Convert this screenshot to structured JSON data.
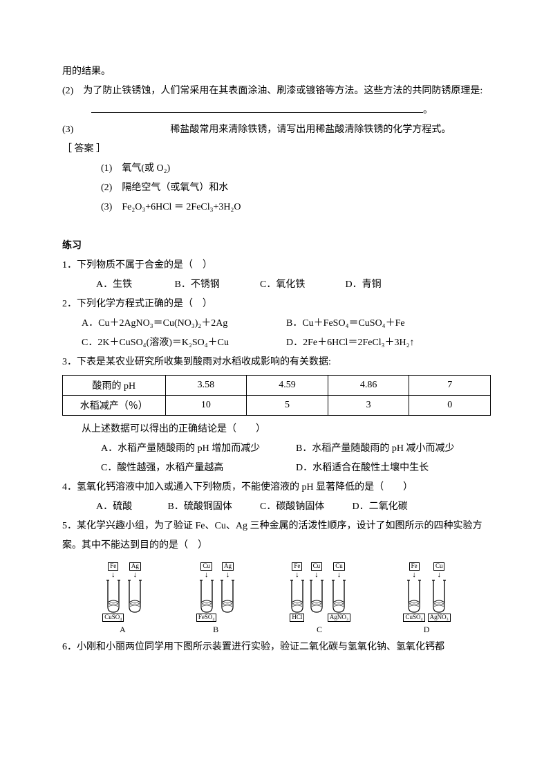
{
  "top": {
    "line1": "用的结果。",
    "q2": "(2)　为了防止铁锈蚀，人们常采用在其表面涂油、刷漆或镀铬等方法。这些方法的共同防锈原理是:",
    "blank_end": "。",
    "q3": "(3)　　　　　　　　　　稀盐酸常用来清除铁锈，请写出用稀盐酸清除铁锈的化学方程式。",
    "answer_label": "［ 答案 ］",
    "a1": "(1)　氧气(或 O₂)",
    "a2": "(2)　隔绝空气（或氧气）和水",
    "a3": "(3)　Fe₂O₃+6HCl ＝ 2FeCl₃+3H₂O"
  },
  "practice_title": "练习",
  "q1": {
    "stem": "1．下列物质不属于合金的是（　）",
    "optA": "A．生铁",
    "optB": "B．不锈钢",
    "optC": "C．氧化铁",
    "optD": "D．青铜"
  },
  "q2p": {
    "stem": "2．下列化学方程式正确的是（　）",
    "optA": "A．Cu＋2AgNO₃＝Cu(NO₃)₂＋2Ag",
    "optB": "B．Cu＋FeSO₄＝CuSO₄＋Fe",
    "optC": "C．2K＋CuSO₄(溶液)＝K₂SO₄＋Cu",
    "optD": "D．2Fe＋6HCl＝2FeCl₃＋3H₂↑"
  },
  "q3p": {
    "stem": "3．下表是某农业研究所收集到酸雨对水稻收成影响的有关数据:",
    "table": {
      "r1": [
        "酸雨的 pH",
        "3.58",
        "4.59",
        "4.86",
        "7"
      ],
      "r2": [
        "水稻减产（％）",
        "10",
        "5",
        "3",
        "0"
      ]
    },
    "followup": "从上述数据可以得出的正确结论是（　　）",
    "optA": "A．水稻产量随酸雨的 pH 增加而减少",
    "optB": "B．水稻产量随酸雨的 pH 减小而减少",
    "optC": "C．酸性越强，水稻产量越高",
    "optD": "D．水稻适合在酸性土壤中生长"
  },
  "q4p": {
    "stem": "4．氢氧化钙溶液中加入或通入下列物质，不能使溶液的 pH 显著降低的是（　　）",
    "optA": "A．硫酸",
    "optB": "B．硫酸铜固体",
    "optC": "C．碳酸钠固体",
    "optD": "D．二氧化碳"
  },
  "q5p": {
    "stem": "5．某化学兴趣小组，为了验证 Fe、Cu、Ag 三种金属的活泼性顺序，设计了如图所示的四种实验方案。其中不能达到目的的是（　）",
    "groups": [
      {
        "letter": "A",
        "tubes": [
          {
            "metal": "Fe",
            "sol": "CuSO₄"
          },
          {
            "metal": "Ag",
            "sol": ""
          }
        ]
      },
      {
        "letter": "B",
        "tubes": [
          {
            "metal": "Cu",
            "sol": "FeSO₄"
          },
          {
            "metal": "Ag",
            "sol": ""
          }
        ]
      },
      {
        "letter": "C",
        "tubes": [
          {
            "metal": "Fe",
            "sol": "HCl"
          },
          {
            "metal": "Cu",
            "sol": ""
          },
          {
            "metal": "Cu",
            "sol": "AgNO₃"
          }
        ]
      },
      {
        "letter": "D",
        "tubes": [
          {
            "metal": "Fe",
            "sol": "CuSO₄"
          },
          {
            "metal": "Cu",
            "sol": "AgNO₃"
          }
        ]
      }
    ]
  },
  "q6p": {
    "stem": "6．小刚和小丽两位同学用下图所示装置进行实验，验证二氧化碳与氢氧化钠、氢氧化钙都"
  },
  "widths": {
    "q1A": "110px",
    "q1B": "120px",
    "q1C": "120px",
    "q1D": "80px",
    "q4A": "100px",
    "q4B": "130px",
    "q4C": "130px",
    "q4D": "110px",
    "table_c1": "24%",
    "table_cN": "19%"
  }
}
